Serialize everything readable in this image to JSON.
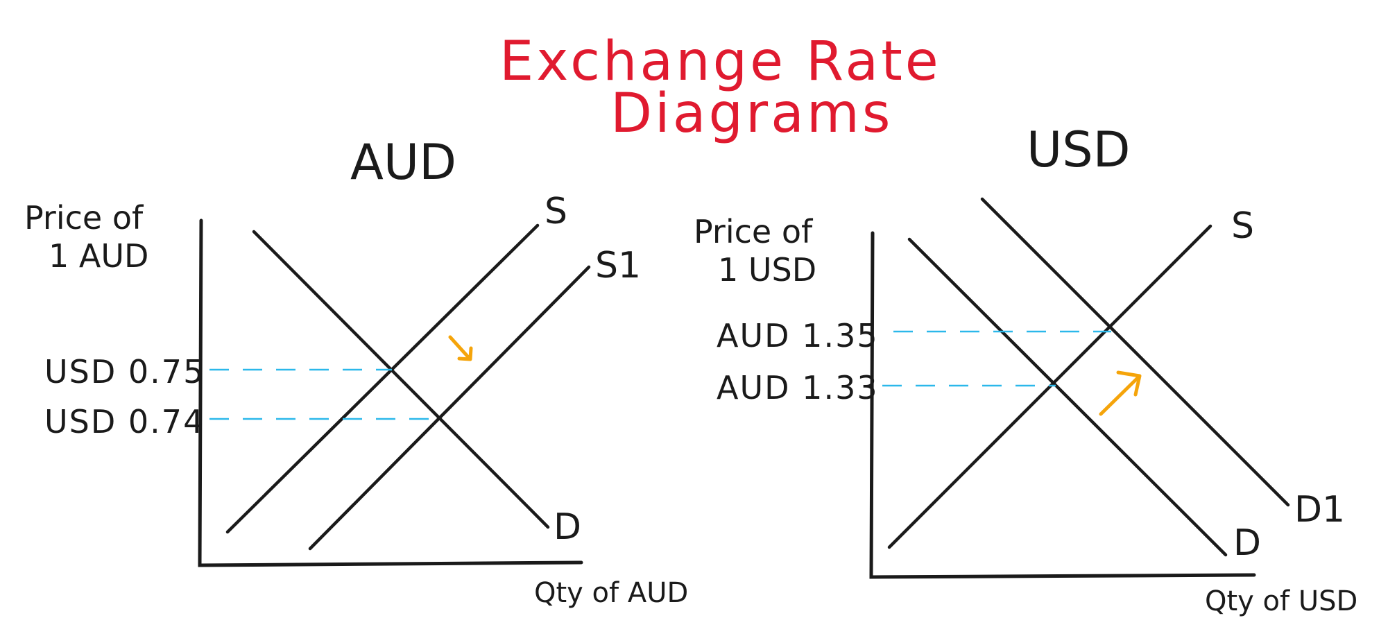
{
  "title": {
    "line1": "Exchange Rate",
    "line2": "Diagrams"
  },
  "diagrams": [
    {
      "currency_title": "AUD",
      "y_label_line1": "Price of",
      "y_label_line2": "1 AUD",
      "x_label": "Qty of AUD",
      "curve_labels": [
        "S",
        "S1",
        "D"
      ],
      "price_levels": [
        "USD 0.75",
        "USD 0.74"
      ],
      "shift": "supply increases (S to S1), price falls",
      "arrow_color": "#f5a40a"
    },
    {
      "currency_title": "USD",
      "y_label_line1": "Price of",
      "y_label_line2": "1 USD",
      "x_label": "Qty of USD",
      "curve_labels": [
        "S",
        "D1",
        "D"
      ],
      "price_levels": [
        "AUD 1.35",
        "AUD 1.33"
      ],
      "shift": "demand increases (D to D1), price rises",
      "arrow_color": "#f5a40a"
    }
  ],
  "colors": {
    "title": "#e01a2f",
    "ink": "#1a1a1a",
    "guide": "#2bb8ea",
    "arrow": "#f5a40a"
  }
}
